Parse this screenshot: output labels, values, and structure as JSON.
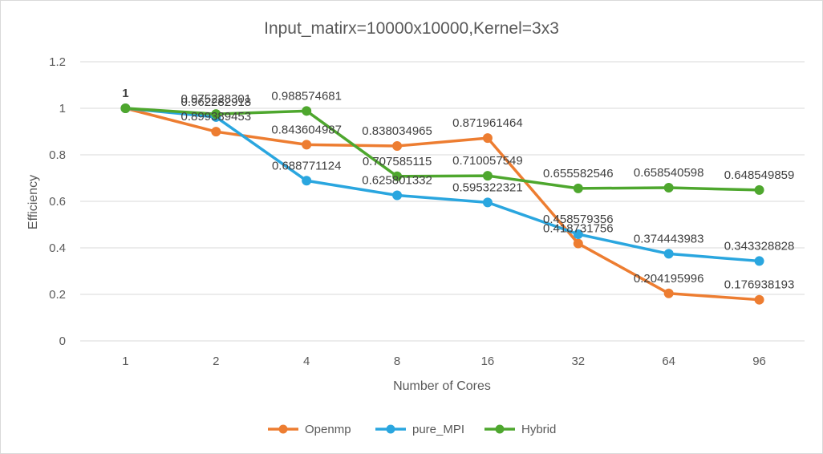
{
  "chart_data": {
    "type": "line",
    "title": "Input_matirx=10000x10000,Kernel=3x3",
    "xlabel": "Number of Cores",
    "ylabel": "Efficiency",
    "categories": [
      "1",
      "2",
      "4",
      "8",
      "16",
      "32",
      "64",
      "96"
    ],
    "ylim": [
      0,
      1.2
    ],
    "yticks": [
      "0",
      "0.2",
      "0.4",
      "0.6",
      "0.8",
      "1",
      "1.2"
    ],
    "grid": true,
    "legend_position": "bottom",
    "series": [
      {
        "name": "Openmp",
        "color": "#ED7D31",
        "values": [
          1,
          0.899389453,
          0.843604987,
          0.838034965,
          0.871961464,
          0.418731756,
          0.204195996,
          0.176938193
        ],
        "labels": [
          "1",
          "0.899389453",
          "0.843604987",
          "0.838034965",
          "0.871961464",
          "0.418731756",
          "0.204195996",
          "0.176938193"
        ]
      },
      {
        "name": "pure_MPI",
        "color": "#2AA6DF",
        "values": [
          1,
          0.962282918,
          0.688771124,
          0.625801332,
          0.595322321,
          0.458579356,
          0.374443983,
          0.343328828
        ],
        "labels": [
          "1",
          "0.962282918",
          "0.688771124",
          "0.625801332",
          "0.595322321",
          "0.458579356",
          "0.374443983",
          "0.343328828"
        ]
      },
      {
        "name": "Hybrid",
        "color": "#4EA72E",
        "values": [
          1,
          0.975228301,
          0.988574681,
          0.707585115,
          0.710057549,
          0.655582546,
          0.658540598,
          0.648549859
        ],
        "labels": [
          "1",
          "0.975228301",
          "0.988574681",
          "0.707585115",
          "0.710057549",
          "0.655582546",
          "0.658540598",
          "0.648549859"
        ]
      }
    ]
  }
}
